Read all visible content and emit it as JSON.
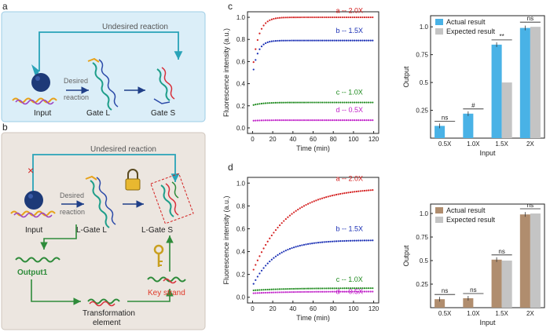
{
  "panels": {
    "a": {
      "letter": "a",
      "undesired": "Undesired reaction",
      "desired_line1": "Desired",
      "desired_line2": "reaction",
      "input": "Input",
      "gate_l": "Gate L",
      "gate_s": "Gate S"
    },
    "b": {
      "letter": "b",
      "undesired": "Undesired reaction",
      "cross": "×",
      "desired_line1": "Desired",
      "desired_line2": "reaction",
      "input": "Input",
      "gate_l": "L-Gate L",
      "gate_s": "L-Gate S",
      "output1": "Output1",
      "key_strand": "Key strand",
      "transformation_line1": "Transformation",
      "transformation_line2": "element"
    },
    "c": {
      "letter": "c"
    },
    "d": {
      "letter": "d"
    }
  },
  "colors": {
    "panel_a_bg": "#dbeef8",
    "panel_a_border": "#9ecde6",
    "panel_b_bg": "#ece6e0",
    "panel_b_border": "#cfc6bd",
    "teal": "#29a3b8",
    "green": "#2e8b3a",
    "navy": "#1f3f88",
    "red_key": "#e03a2a",
    "series_a": "#d42020",
    "series_b": "#1a2fb4",
    "series_c": "#1f8a1f",
    "series_d": "#c020c8",
    "bar_actual_c": "#49b2e6",
    "bar_actual_d": "#b08d6e",
    "bar_expected": "#c4c4c4"
  },
  "chart_data": [
    {
      "id": "c-curves",
      "type": "scatter",
      "title": "",
      "xlabel": "Time (min)",
      "ylabel": "Fluorescence intensity (a.u.)",
      "xlim": [
        -5,
        125
      ],
      "ylim": [
        -0.05,
        1.05
      ],
      "xticks": [
        0,
        20,
        40,
        60,
        80,
        100,
        120
      ],
      "yticks": [
        0.0,
        0.2,
        0.4,
        0.6,
        0.8,
        1.0
      ],
      "series": [
        {
          "name": "a -- 2.0X",
          "key": "series_a",
          "start": 0.52,
          "plateau": 1.0,
          "k": 0.17,
          "label_x": 96,
          "label_y": 1.04
        },
        {
          "name": "b -- 1.5X",
          "key": "series_b",
          "start": 0.47,
          "plateau": 0.79,
          "k": 0.2,
          "label_x": 96,
          "label_y": 0.86
        },
        {
          "name": "c -- 1.0X",
          "key": "series_c",
          "start": 0.205,
          "plateau": 0.23,
          "k": 0.1,
          "label_x": 96,
          "label_y": 0.3
        },
        {
          "name": "d -- 0.5X",
          "key": "series_d",
          "start": 0.065,
          "plateau": 0.07,
          "k": 0.1,
          "label_x": 96,
          "label_y": 0.14
        }
      ]
    },
    {
      "id": "c-bars",
      "type": "bar",
      "title": "",
      "xlabel": "Input",
      "ylabel": "Output",
      "categories": [
        "0.5X",
        "1.0X",
        "1.5X",
        "2X"
      ],
      "ylim": [
        0,
        1.1
      ],
      "yticks": [
        0.25,
        0.5,
        0.75,
        1.0
      ],
      "series": [
        {
          "name": "Actual result",
          "key": "bar_actual_c",
          "values": [
            0.11,
            0.22,
            0.84,
            0.99
          ]
        },
        {
          "name": "Expected result",
          "key": "bar_expected",
          "values": [
            0,
            0,
            0.5,
            1.0
          ]
        }
      ],
      "annotations": [
        "ns",
        "#",
        "**",
        "ns"
      ]
    },
    {
      "id": "d-curves",
      "type": "scatter",
      "title": "",
      "xlabel": "Time (min)",
      "ylabel": "Fluorescence intensity (a.u.)",
      "xlim": [
        -5,
        125
      ],
      "ylim": [
        -0.05,
        1.05
      ],
      "xticks": [
        0,
        20,
        40,
        60,
        80,
        100,
        120
      ],
      "yticks": [
        0.0,
        0.2,
        0.4,
        0.6,
        0.8,
        1.0
      ],
      "series": [
        {
          "name": "a -- 2.0X",
          "key": "series_a",
          "start": 0.22,
          "plateau": 0.96,
          "k": 0.03,
          "label_x": 96,
          "label_y": 1.02
        },
        {
          "name": "b -- 1.5X",
          "key": "series_b",
          "start": 0.1,
          "plateau": 0.5,
          "k": 0.045,
          "label_x": 96,
          "label_y": 0.58
        },
        {
          "name": "c -- 1.0X",
          "key": "series_c",
          "start": 0.06,
          "plateau": 0.08,
          "k": 0.03,
          "label_x": 96,
          "label_y": 0.135
        },
        {
          "name": "d -- 0.5X",
          "key": "series_d",
          "start": 0.035,
          "plateau": 0.05,
          "k": 0.03,
          "label_x": 96,
          "label_y": 0.03
        }
      ]
    },
    {
      "id": "d-bars",
      "type": "bar",
      "title": "",
      "xlabel": "Input",
      "ylabel": "Output",
      "categories": [
        "0.5X",
        "1.0X",
        "1.5X",
        "2X"
      ],
      "ylim": [
        0,
        1.1
      ],
      "yticks": [
        0.25,
        0.5,
        0.75,
        1.0
      ],
      "series": [
        {
          "name": "Actual result",
          "key": "bar_actual_d",
          "values": [
            0.09,
            0.1,
            0.51,
            0.99
          ]
        },
        {
          "name": "Expected result",
          "key": "bar_expected",
          "values": [
            0,
            0,
            0.5,
            1.0
          ]
        }
      ],
      "annotations": [
        "ns",
        "ns",
        "ns",
        "ns"
      ]
    }
  ]
}
